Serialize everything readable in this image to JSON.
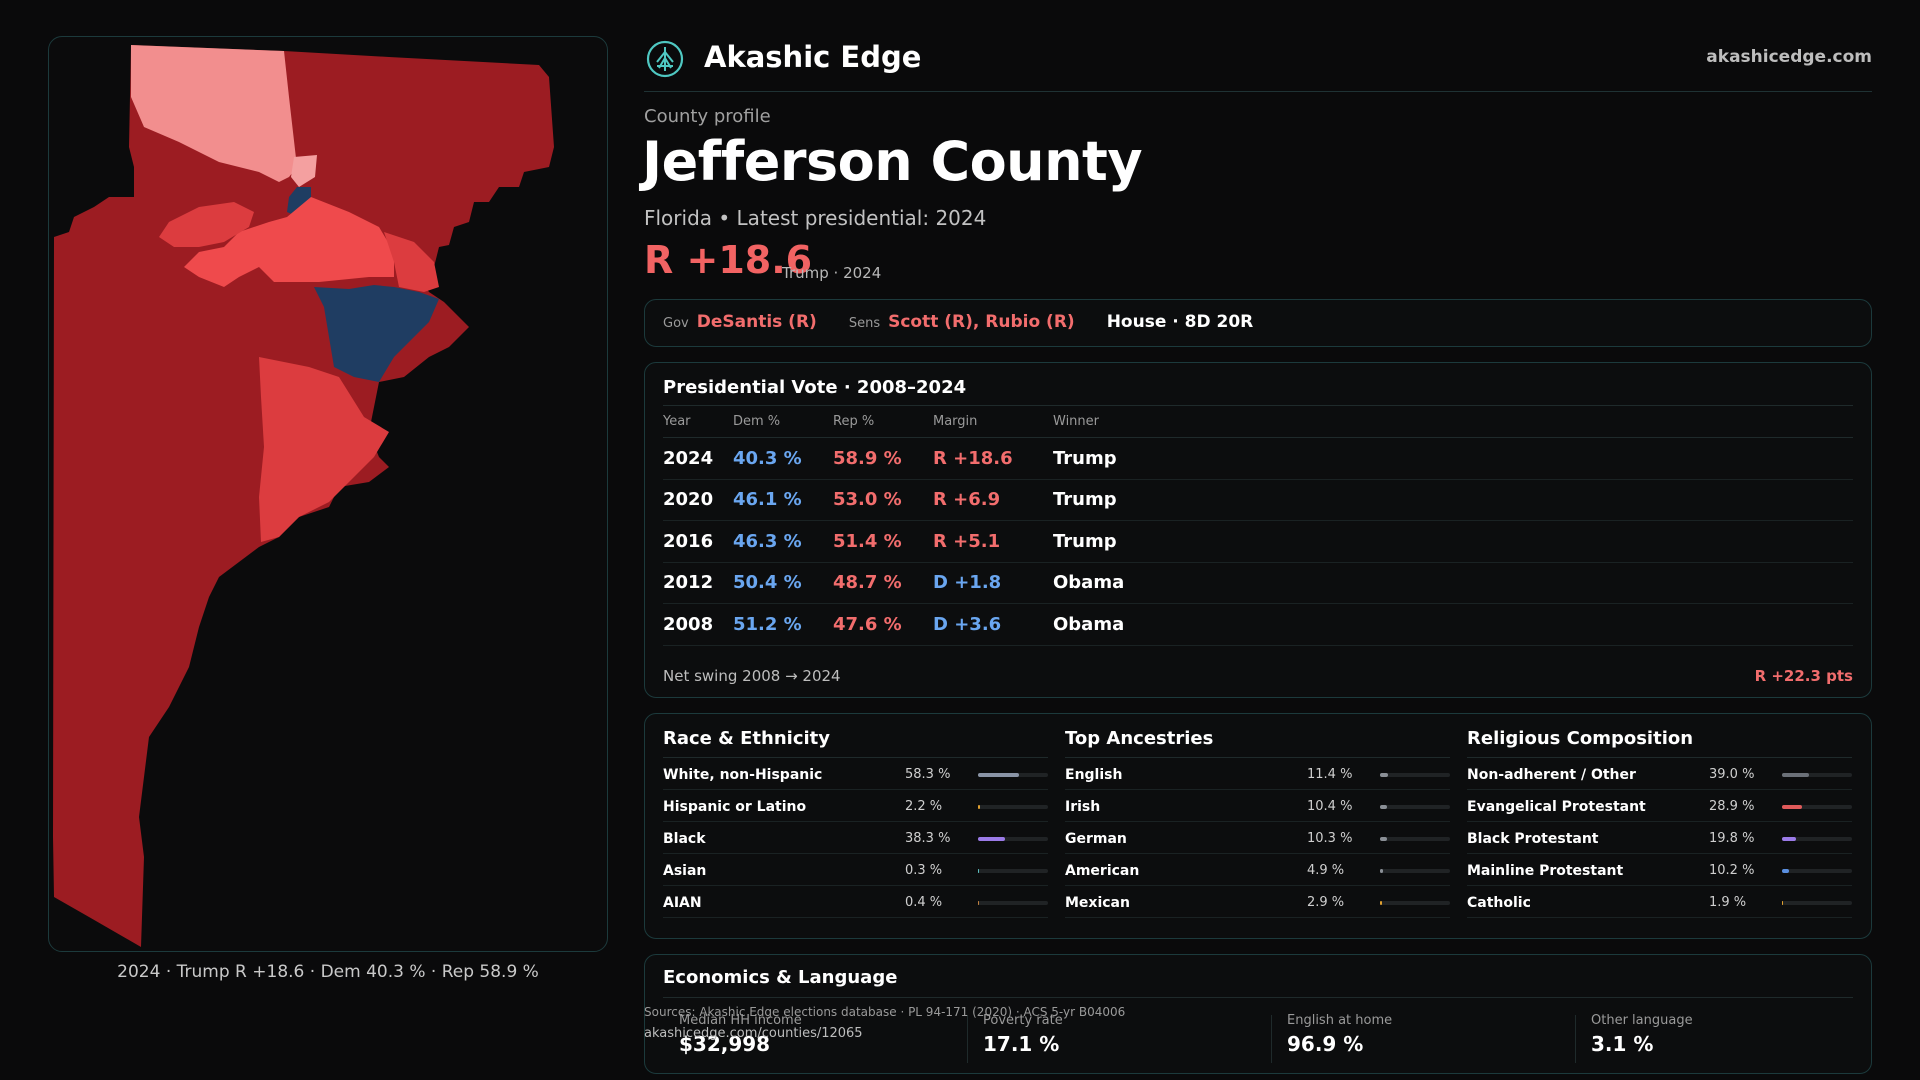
{
  "header": {
    "brand": "Akashic Edge",
    "site": "akashicedge.com",
    "logo_icon": "compass-tree-icon",
    "accent": "#4fc8c2"
  },
  "profile": {
    "eyebrow": "County profile",
    "title": "Jefferson County",
    "subtitle": "Florida • Latest presidential: 2024",
    "margin": "R +18.6",
    "margin_note": "Trump · 2024"
  },
  "officials": {
    "gov_label": "Gov",
    "gov": "DeSantis (R)",
    "sens_label": "Sens",
    "sens": "Scott (R), Rubio (R)",
    "house": "House · 8D 20R"
  },
  "presidential": {
    "title": "Presidential Vote · 2008–2024",
    "headers": [
      "Year",
      "Dem %",
      "Rep %",
      "Margin",
      "Winner"
    ],
    "rows": [
      {
        "year": "2024",
        "dem": "40.3 %",
        "rep": "58.9 %",
        "margin": "R +18.6",
        "party": "rep",
        "winner": "Trump"
      },
      {
        "year": "2020",
        "dem": "46.1 %",
        "rep": "53.0 %",
        "margin": "R +6.9",
        "party": "rep",
        "winner": "Trump"
      },
      {
        "year": "2016",
        "dem": "46.3 %",
        "rep": "51.4 %",
        "margin": "R +5.1",
        "party": "rep",
        "winner": "Trump"
      },
      {
        "year": "2012",
        "dem": "50.4 %",
        "rep": "48.7 %",
        "margin": "D +1.8",
        "party": "dem",
        "winner": "Obama"
      },
      {
        "year": "2008",
        "dem": "51.2 %",
        "rep": "47.6 %",
        "margin": "D +3.6",
        "party": "dem",
        "winner": "Obama"
      }
    ],
    "swing_label": "Net swing 2008 → 2024",
    "swing_value": "R +22.3 pts"
  },
  "race": {
    "title": "Race & Ethnicity",
    "items": [
      {
        "name": "White, non-Hispanic",
        "pct": "58.3 %",
        "value": 58.3,
        "color": "#8a94a6"
      },
      {
        "name": "Hispanic or Latino",
        "pct": "2.2 %",
        "value": 2.2,
        "color": "#e0a030"
      },
      {
        "name": "Black",
        "pct": "38.3 %",
        "value": 38.3,
        "color": "#9b7be8"
      },
      {
        "name": "Asian",
        "pct": "0.3 %",
        "value": 0.3,
        "color": "#5bc0c0"
      },
      {
        "name": "AIAN",
        "pct": "0.4 %",
        "value": 0.4,
        "color": "#c08040"
      }
    ]
  },
  "ancestries": {
    "title": "Top Ancestries",
    "items": [
      {
        "name": "English",
        "pct": "11.4 %",
        "value": 11.4,
        "color": "#8a8f96"
      },
      {
        "name": "Irish",
        "pct": "10.4 %",
        "value": 10.4,
        "color": "#8a8f96"
      },
      {
        "name": "German",
        "pct": "10.3 %",
        "value": 10.3,
        "color": "#8a8f96"
      },
      {
        "name": "American",
        "pct": "4.9 %",
        "value": 4.9,
        "color": "#8a8f96"
      },
      {
        "name": "Mexican",
        "pct": "2.9 %",
        "value": 2.9,
        "color": "#e0a030"
      }
    ]
  },
  "religion": {
    "title": "Religious Composition",
    "items": [
      {
        "name": "Non-adherent / Other",
        "pct": "39.0 %",
        "value": 39.0,
        "color": "#6b7078"
      },
      {
        "name": "Evangelical Protestant",
        "pct": "28.9 %",
        "value": 28.9,
        "color": "#e05a5a"
      },
      {
        "name": "Black Protestant",
        "pct": "19.8 %",
        "value": 19.8,
        "color": "#9b7be8"
      },
      {
        "name": "Mainline Protestant",
        "pct": "10.2 %",
        "value": 10.2,
        "color": "#5a8fe0"
      },
      {
        "name": "Catholic",
        "pct": "1.9 %",
        "value": 1.9,
        "color": "#e0a030"
      }
    ]
  },
  "economics": {
    "title": "Economics & Language",
    "stats": [
      {
        "label": "Median HH income",
        "value": "$32,998"
      },
      {
        "label": "Poverty rate",
        "value": "17.1 %"
      },
      {
        "label": "English at home",
        "value": "96.9 %"
      },
      {
        "label": "Other language",
        "value": "3.1 %"
      }
    ]
  },
  "footer": {
    "sources": "Sources: Akashic Edge elections database · PL 94-171 (2020) · ACS 5-yr B04006",
    "url": "akashicedge.com/counties/12065"
  },
  "map": {
    "caption": "2024 · Trump R +18.6 · Dem 40.3 % · Rep 58.9 %",
    "colors": {
      "rep_strong": "#9c1c22",
      "rep_mid": "#dc3c3f",
      "rep_light": "#f28e8e",
      "rep_bright": "#ef4a4c",
      "dem": "#1f3d62"
    }
  }
}
